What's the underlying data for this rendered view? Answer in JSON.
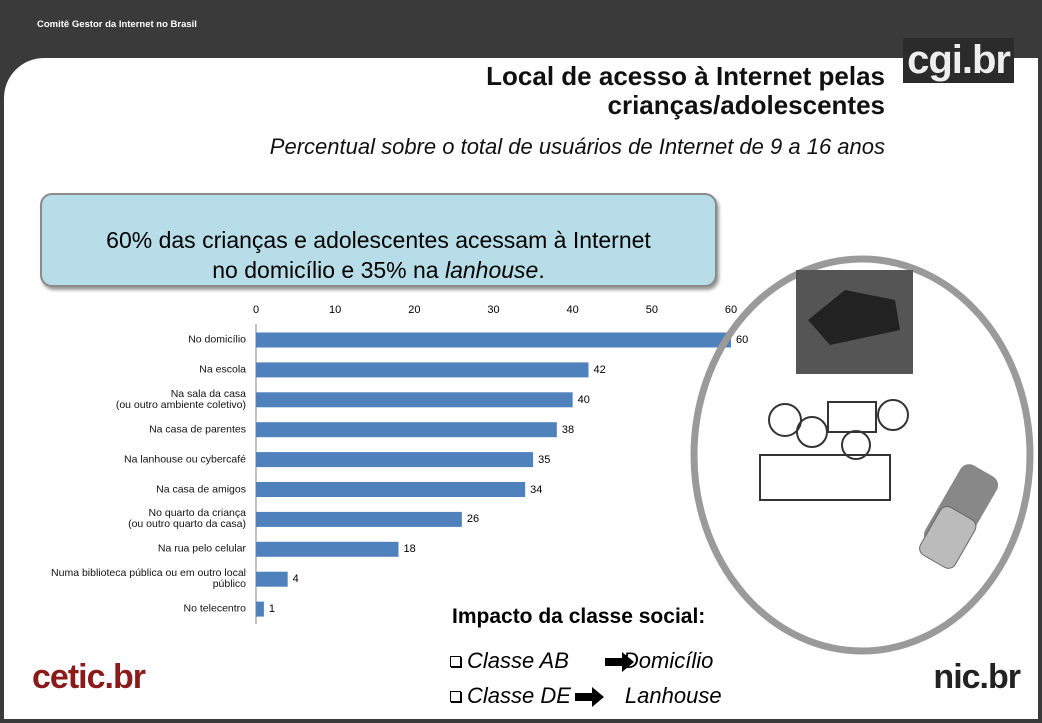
{
  "header": {
    "organization": "Comitê Gestor da Internet no Brasil",
    "logo": "cgi.br",
    "title": "Local de acesso à Internet pelas\ncrianças/adolescentes",
    "subtitle": "Percentual sobre o total de usuários de Internet de 9 a 16 anos"
  },
  "callout": [
    "60% das crianças e adolescentes acessam à Internet\nno domicílio e 35% na ",
    "lanhouse",
    "."
  ],
  "chart_data": {
    "type": "hbar",
    "categories": [
      "No domicílio",
      "Na escola",
      "Na sala da casa\n(ou outro ambiente coletivo)",
      "Na casa de parentes",
      "Na lanhouse ou cybercafé",
      "Na casa de amigos",
      "No quarto da criança\n(ou outro quarto da casa)",
      "Na rua pelo celular",
      "Numa biblioteca pública ou em outro local\npúblico",
      "No telecentro"
    ],
    "values": [
      60,
      42,
      40,
      38,
      35,
      34,
      26,
      18,
      4,
      1
    ],
    "color": "#4f81bd",
    "xlim": [
      0,
      60
    ],
    "xticks": [
      0,
      10,
      20,
      30,
      40,
      50,
      60
    ],
    "grid": false
  },
  "impact": {
    "title": "Impacto da classe social:",
    "items": [
      {
        "class": "Classe AB",
        "target": "Domicílio"
      },
      {
        "class": "Classe DE",
        "target": "Lanhouse"
      }
    ]
  },
  "footer": {
    "left_logo": "cetic.br",
    "right_logo": "nic.br"
  }
}
